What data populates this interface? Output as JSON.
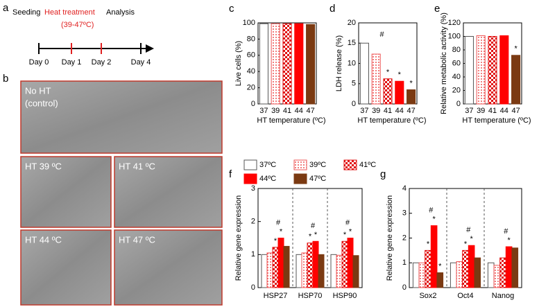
{
  "timeline": {
    "label": "a",
    "steps": [
      "Seeding",
      "Heat treatment",
      "Analysis"
    ],
    "range": "(39-47ºC)",
    "days": [
      "Day 0",
      "Day 1",
      "Day 2",
      "Day 4"
    ]
  },
  "images": {
    "label": "b",
    "captions": [
      "No HT",
      "(control)",
      "HT 39 ºC",
      "HT 41 ºC",
      "HT 44 ºC",
      "HT 47 ºC"
    ]
  },
  "chart_data": [
    {
      "type": "bar",
      "label": "c",
      "ylabel": "Live cells (%)",
      "xlabel": "HT temperature (ºC)",
      "categories": [
        "37",
        "39",
        "41",
        "44",
        "47"
      ],
      "values": [
        99,
        99,
        99,
        99,
        98
      ],
      "colors": [
        "#ffffff",
        "dots",
        "checker",
        "#ff0000",
        "#7b3a12"
      ],
      "ylim": [
        0,
        100
      ],
      "yticks": [
        0,
        20,
        40,
        60,
        80,
        100
      ]
    },
    {
      "type": "bar",
      "label": "d",
      "ylabel": "LDH release (%)",
      "xlabel": "HT temperature (ºC)",
      "categories": [
        "37",
        "39",
        "41",
        "44",
        "47"
      ],
      "values": [
        15,
        12.3,
        6.2,
        5.6,
        3.5
      ],
      "colors": [
        "#ffffff",
        "dots",
        "checker",
        "#ff0000",
        "#7b3a12"
      ],
      "ylim": [
        0,
        20
      ],
      "yticks": [
        0,
        5,
        10,
        15,
        20
      ],
      "annotations": [
        {
          "text": "#",
          "index": 1
        },
        {
          "text": "*",
          "index": 2
        },
        {
          "text": "*",
          "index": 3
        },
        {
          "text": "*",
          "index": 4
        }
      ]
    },
    {
      "type": "bar",
      "label": "e",
      "ylabel": "Relative metabolic activity (%)",
      "xlabel": "HT temperature (ºC)",
      "categories": [
        "37",
        "39",
        "41",
        "44",
        "47"
      ],
      "values": [
        100,
        101,
        100,
        101,
        72
      ],
      "colors": [
        "#ffffff",
        "dots",
        "checker",
        "#ff0000",
        "#7b3a12"
      ],
      "ylim": [
        0,
        120
      ],
      "yticks": [
        0,
        20,
        40,
        60,
        80,
        100,
        120
      ],
      "annotations": [
        {
          "text": "*",
          "index": 4
        }
      ]
    },
    {
      "type": "grouped-bar",
      "label": "f",
      "ylabel": "Relative gene expression",
      "legend": true,
      "categories": [
        "HSP27",
        "HSP70",
        "HSP90"
      ],
      "series": [
        {
          "name": "37ºC",
          "color": "#ffffff",
          "values": [
            1,
            1,
            1
          ]
        },
        {
          "name": "39ºC",
          "color": "dots",
          "values": [
            1.05,
            1.05,
            0.98
          ]
        },
        {
          "name": "41ºC",
          "color": "checker",
          "values": [
            1.22,
            1.35,
            1.4
          ]
        },
        {
          "name": "44ºC",
          "color": "#ff0000",
          "values": [
            1.5,
            1.4,
            1.5
          ]
        },
        {
          "name": "47ºC",
          "color": "#7b3a12",
          "values": [
            1.25,
            1.0,
            0.97
          ]
        }
      ],
      "ylim": [
        0,
        3
      ],
      "yticks": [
        0,
        1,
        2,
        3
      ],
      "annotations": [
        {
          "text": "*",
          "group": 0,
          "series": 2
        },
        {
          "text": "*",
          "group": 0,
          "series": 3
        },
        {
          "text": "#",
          "group": 0
        },
        {
          "text": "*",
          "group": 1,
          "series": 2
        },
        {
          "text": "*",
          "group": 1,
          "series": 3
        },
        {
          "text": "#",
          "group": 1
        },
        {
          "text": "*",
          "group": 2,
          "series": 2
        },
        {
          "text": "*",
          "group": 2,
          "series": 3
        },
        {
          "text": "#",
          "group": 2
        }
      ]
    },
    {
      "type": "grouped-bar",
      "label": "g",
      "ylabel": "Relative gene expression",
      "legend": false,
      "categories": [
        "Sox2",
        "Oct4",
        "Nanog"
      ],
      "series": [
        {
          "color": "#ffffff",
          "values": [
            1,
            1,
            1
          ]
        },
        {
          "color": "dots",
          "values": [
            1.0,
            1.05,
            0.9
          ]
        },
        {
          "color": "checker",
          "values": [
            1.5,
            1.5,
            1.2
          ]
        },
        {
          "color": "#ff0000",
          "values": [
            2.5,
            1.7,
            1.65
          ]
        },
        {
          "color": "#7b3a12",
          "values": [
            0.6,
            1.2,
            1.6
          ]
        }
      ],
      "ylim": [
        0,
        4
      ],
      "yticks": [
        0,
        1,
        2,
        3,
        4
      ],
      "annotations": [
        {
          "text": "*",
          "group": 0,
          "series": 2
        },
        {
          "text": "*",
          "group": 0,
          "series": 3
        },
        {
          "text": "*",
          "group": 0,
          "series": 4
        },
        {
          "text": "#",
          "group": 0
        },
        {
          "text": "*",
          "group": 1,
          "series": 2
        },
        {
          "text": "*",
          "group": 1,
          "series": 3
        },
        {
          "text": "#",
          "group": 1
        },
        {
          "text": "*",
          "group": 2,
          "series": 3
        },
        {
          "text": "#",
          "group": 2
        }
      ]
    }
  ]
}
